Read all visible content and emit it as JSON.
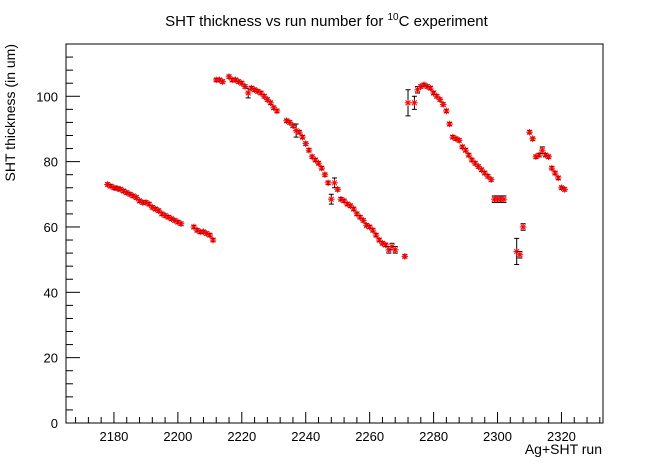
{
  "chart_data": {
    "type": "scatter",
    "title": {
      "pre": "SHT thickness vs run number for ",
      "sup": "10",
      "post": "C experiment"
    },
    "xlabel": "Ag+SHT run",
    "ylabel": "SHT thickness (in um)",
    "xlim": [
      2165,
      2333
    ],
    "ylim": [
      0,
      116
    ],
    "xticks": [
      2180,
      2200,
      2220,
      2240,
      2260,
      2280,
      2300,
      2320
    ],
    "yticks": [
      0,
      20,
      40,
      60,
      80,
      100
    ],
    "marker_color": "#ff0000",
    "errorbar_color": "#000000",
    "series": [
      {
        "name": "SHT thickness",
        "points": [
          [
            2178,
            73,
            0.5
          ],
          [
            2179,
            72.5,
            0.5
          ],
          [
            2180,
            72,
            0.5
          ],
          [
            2181,
            71.8,
            0.5
          ],
          [
            2182,
            71.5,
            0.5
          ],
          [
            2183,
            71,
            0.5
          ],
          [
            2184,
            70.5,
            0.5
          ],
          [
            2185,
            70,
            0.5
          ],
          [
            2186,
            69.5,
            0.5
          ],
          [
            2187,
            69,
            0.5
          ],
          [
            2188,
            68,
            0.5
          ],
          [
            2189,
            67.5,
            0.5
          ],
          [
            2190,
            67.5,
            0.5
          ],
          [
            2191,
            67,
            0.5
          ],
          [
            2192,
            66,
            0.5
          ],
          [
            2193,
            65.5,
            0.5
          ],
          [
            2194,
            65,
            0.5
          ],
          [
            2195,
            64,
            0.5
          ],
          [
            2196,
            63.5,
            0.5
          ],
          [
            2197,
            63,
            0.5
          ],
          [
            2198,
            62.5,
            0.5
          ],
          [
            2199,
            62,
            0.5
          ],
          [
            2200,
            61.5,
            0.5
          ],
          [
            2201,
            61,
            0.5
          ],
          [
            2205,
            60,
            0.5
          ],
          [
            2206,
            59,
            0.5
          ],
          [
            2207,
            58.5,
            0.5
          ],
          [
            2208,
            58.5,
            0.5
          ],
          [
            2209,
            58,
            0.5
          ],
          [
            2210,
            57.5,
            0.5
          ],
          [
            2211,
            56,
            0.5
          ],
          [
            2212,
            105,
            0.5
          ],
          [
            2213,
            105,
            0.5
          ],
          [
            2214,
            104.5,
            0.5
          ],
          [
            2216,
            106,
            0.5
          ],
          [
            2217,
            105,
            0.5
          ],
          [
            2218,
            105,
            0.5
          ],
          [
            2219,
            104.5,
            0.5
          ],
          [
            2220,
            104,
            0.5
          ],
          [
            2221,
            103,
            0.5
          ],
          [
            2222,
            101,
            1.5
          ],
          [
            2223,
            102.5,
            0.5
          ],
          [
            2224,
            102,
            0.5
          ],
          [
            2225,
            101.5,
            0.5
          ],
          [
            2226,
            101,
            0.5
          ],
          [
            2227,
            100,
            0.5
          ],
          [
            2228,
            99,
            0.5
          ],
          [
            2229,
            98,
            0.5
          ],
          [
            2230,
            96.5,
            0.5
          ],
          [
            2231,
            95.5,
            0.5
          ],
          [
            2234,
            92.5,
            0.5
          ],
          [
            2235,
            92,
            0.5
          ],
          [
            2236,
            91,
            0.5
          ],
          [
            2237,
            89.5,
            2
          ],
          [
            2238,
            89,
            0.5
          ],
          [
            2239,
            87.5,
            0.5
          ],
          [
            2240,
            85.5,
            0.5
          ],
          [
            2241,
            83.5,
            0.5
          ],
          [
            2242,
            81.5,
            0.5
          ],
          [
            2243,
            80.5,
            0.5
          ],
          [
            2244,
            79.5,
            0.5
          ],
          [
            2245,
            78,
            0.5
          ],
          [
            2246,
            76,
            0.5
          ],
          [
            2247,
            73.5,
            0.5
          ],
          [
            2248,
            68.5,
            1.5
          ],
          [
            2249,
            73.5,
            1.5
          ],
          [
            2250,
            71.5,
            0.5
          ],
          [
            2251,
            68.5,
            0.5
          ],
          [
            2252,
            68,
            0.5
          ],
          [
            2253,
            67,
            0.5
          ],
          [
            2254,
            66.5,
            0.5
          ],
          [
            2255,
            65.5,
            0.5
          ],
          [
            2256,
            64,
            0.5
          ],
          [
            2257,
            63,
            0.5
          ],
          [
            2258,
            62,
            0.5
          ],
          [
            2259,
            60.5,
            0.5
          ],
          [
            2260,
            60,
            0.5
          ],
          [
            2261,
            59,
            0.5
          ],
          [
            2262,
            57.5,
            0.5
          ],
          [
            2263,
            56,
            0.5
          ],
          [
            2264,
            55,
            0.5
          ],
          [
            2265,
            54.5,
            0.5
          ],
          [
            2266,
            53,
            1
          ],
          [
            2267,
            54,
            1
          ],
          [
            2268,
            53,
            1
          ],
          [
            2271,
            51,
            0.5
          ],
          [
            2272,
            98,
            4
          ],
          [
            2274,
            98,
            2
          ],
          [
            2275,
            102,
            1
          ],
          [
            2276,
            103,
            0.5
          ],
          [
            2277,
            103.5,
            0.5
          ],
          [
            2278,
            103,
            0.5
          ],
          [
            2279,
            102.5,
            0.5
          ],
          [
            2280,
            101,
            0.5
          ],
          [
            2281,
            100,
            0.5
          ],
          [
            2282,
            99,
            0.5
          ],
          [
            2283,
            97.5,
            0.5
          ],
          [
            2284,
            95.5,
            0.5
          ],
          [
            2285,
            91.5,
            0.5
          ],
          [
            2286,
            87.5,
            0.5
          ],
          [
            2287,
            87,
            0.5
          ],
          [
            2288,
            86.5,
            0.5
          ],
          [
            2289,
            84.5,
            0.5
          ],
          [
            2290,
            83.5,
            0.5
          ],
          [
            2291,
            82,
            0.5
          ],
          [
            2292,
            80.5,
            0.5
          ],
          [
            2293,
            79.5,
            0.5
          ],
          [
            2294,
            78.5,
            0.5
          ],
          [
            2295,
            77.5,
            0.5
          ],
          [
            2296,
            76.5,
            0.5
          ],
          [
            2297,
            75.5,
            0.5
          ],
          [
            2298,
            74.5,
            0.5
          ],
          [
            2299,
            68.5,
            1
          ],
          [
            2300,
            68.5,
            1
          ],
          [
            2301,
            68.5,
            1
          ],
          [
            2302,
            68.5,
            1
          ],
          [
            2306,
            52.5,
            4
          ],
          [
            2307,
            51.5,
            1
          ],
          [
            2308,
            60,
            1
          ],
          [
            2310,
            89,
            0.5
          ],
          [
            2311,
            87,
            0.5
          ],
          [
            2312,
            81.5,
            0.5
          ],
          [
            2313,
            82,
            0.5
          ],
          [
            2314,
            83.5,
            1
          ],
          [
            2315,
            82,
            0.5
          ],
          [
            2316,
            81.5,
            0.5
          ],
          [
            2317,
            78,
            0.5
          ],
          [
            2318,
            76.5,
            0.5
          ],
          [
            2319,
            75,
            0.5
          ],
          [
            2320,
            72,
            0.5
          ],
          [
            2321,
            71.5,
            0.5
          ]
        ]
      }
    ]
  }
}
